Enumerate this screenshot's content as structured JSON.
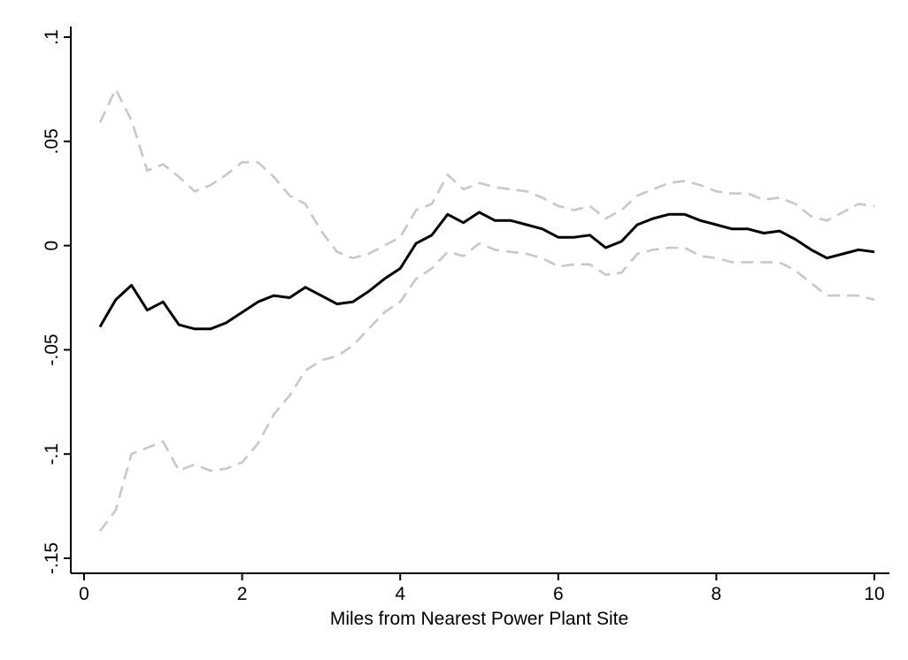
{
  "chart_data": {
    "type": "line",
    "title": "",
    "xlabel": "Miles from Nearest Power Plant Site",
    "ylabel": "",
    "xlim": [
      0,
      10
    ],
    "ylim": [
      -0.15,
      0.1
    ],
    "grid": false,
    "legend": "none",
    "x_ticks": [
      0,
      2,
      4,
      6,
      8,
      10
    ],
    "x_tick_labels": [
      "0",
      "2",
      "4",
      "6",
      "8",
      "10"
    ],
    "y_ticks": [
      -0.15,
      -0.1,
      -0.05,
      0,
      0.05,
      0.1
    ],
    "y_tick_labels": [
      "-.15",
      "-.1",
      "-.05",
      "0",
      ".05",
      ".1"
    ],
    "x": [
      0.2,
      0.4,
      0.6,
      0.8,
      1.0,
      1.2,
      1.4,
      1.6,
      1.8,
      2.0,
      2.2,
      2.4,
      2.6,
      2.8,
      3.0,
      3.2,
      3.4,
      3.6,
      3.8,
      4.0,
      4.2,
      4.4,
      4.6,
      4.8,
      5.0,
      5.2,
      5.4,
      5.6,
      5.8,
      6.0,
      6.2,
      6.4,
      6.6,
      6.8,
      7.0,
      7.2,
      7.4,
      7.6,
      7.8,
      8.0,
      8.2,
      8.4,
      8.6,
      8.8,
      9.0,
      9.2,
      9.4,
      9.6,
      9.8,
      10.0
    ],
    "series": [
      {
        "style": "solid",
        "color": "#000000",
        "values": [
          -0.039,
          -0.026,
          -0.019,
          -0.031,
          -0.027,
          -0.038,
          -0.04,
          -0.04,
          -0.037,
          -0.032,
          -0.027,
          -0.024,
          -0.025,
          -0.02,
          -0.024,
          -0.028,
          -0.027,
          -0.022,
          -0.016,
          -0.011,
          0.001,
          0.005,
          0.015,
          0.011,
          0.016,
          0.012,
          0.012,
          0.01,
          0.008,
          0.004,
          0.004,
          0.005,
          -0.001,
          0.002,
          0.01,
          0.013,
          0.015,
          0.015,
          0.012,
          0.01,
          0.008,
          0.008,
          0.006,
          0.007,
          0.003,
          -0.002,
          -0.006,
          -0.004,
          -0.002,
          -0.003
        ]
      },
      {
        "style": "dashed",
        "color": "#c8c8c8",
        "values": [
          0.059,
          0.075,
          0.06,
          0.036,
          0.039,
          0.033,
          0.026,
          0.029,
          0.034,
          0.04,
          0.04,
          0.033,
          0.024,
          0.02,
          0.007,
          -0.003,
          -0.006,
          -0.004,
          0.0,
          0.004,
          0.017,
          0.02,
          0.034,
          0.027,
          0.03,
          0.028,
          0.027,
          0.026,
          0.023,
          0.019,
          0.017,
          0.019,
          0.013,
          0.017,
          0.024,
          0.027,
          0.03,
          0.031,
          0.029,
          0.026,
          0.025,
          0.025,
          0.022,
          0.023,
          0.02,
          0.014,
          0.012,
          0.016,
          0.02,
          0.019
        ]
      },
      {
        "style": "dashed",
        "color": "#c8c8c8",
        "values": [
          -0.137,
          -0.127,
          -0.1,
          -0.097,
          -0.094,
          -0.108,
          -0.105,
          -0.108,
          -0.107,
          -0.104,
          -0.095,
          -0.081,
          -0.072,
          -0.06,
          -0.055,
          -0.053,
          -0.048,
          -0.04,
          -0.032,
          -0.027,
          -0.016,
          -0.011,
          -0.003,
          -0.005,
          0.001,
          -0.002,
          -0.003,
          -0.004,
          -0.006,
          -0.01,
          -0.009,
          -0.009,
          -0.014,
          -0.013,
          -0.004,
          -0.002,
          -0.001,
          -0.001,
          -0.005,
          -0.006,
          -0.008,
          -0.008,
          -0.008,
          -0.008,
          -0.012,
          -0.018,
          -0.024,
          -0.024,
          -0.024,
          -0.026
        ]
      }
    ]
  }
}
